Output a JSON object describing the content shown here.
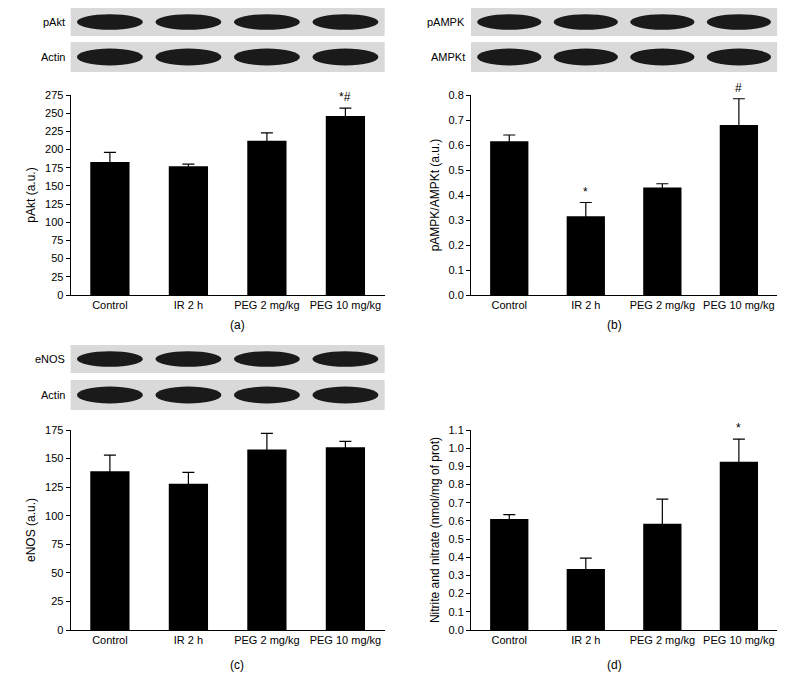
{
  "chart_data": [
    {
      "type": "bar",
      "panel_label": "(a)",
      "blots": [
        "pAkt",
        "Actin"
      ],
      "categories": [
        "Control",
        "IR 2 h",
        "PEG 2 mg/kg",
        "PEG 10 mg/kg"
      ],
      "values": [
        183,
        177,
        212,
        246
      ],
      "errors": [
        13,
        3,
        11,
        11
      ],
      "color": "#000000",
      "y_label": "pAkt (a.u.)",
      "ylim": [
        0,
        275
      ],
      "yticks": [
        0,
        25,
        50,
        75,
        100,
        125,
        150,
        175,
        200,
        225,
        250,
        275
      ],
      "grid": false,
      "annotations": [
        {
          "category": "PEG 10 mg/kg",
          "text": "*#"
        }
      ]
    },
    {
      "type": "bar",
      "panel_label": "(b)",
      "blots": [
        "pAMPK",
        "AMPKt"
      ],
      "categories": [
        "Control",
        "IR 2 h",
        "PEG 2 mg/kg",
        "PEG 10 mg/kg"
      ],
      "values": [
        0.615,
        0.315,
        0.43,
        0.68
      ],
      "errors": [
        0.025,
        0.055,
        0.015,
        0.105
      ],
      "color": "#000000",
      "y_label": "pAMPK/AMPKt (a.u.)",
      "ylim": [
        0,
        0.8
      ],
      "yticks": [
        {
          "value": 0,
          "label": "0.0"
        },
        0.1,
        0.2,
        0.3,
        0.4,
        0.5,
        0.6,
        0.7,
        0.8
      ],
      "grid": false,
      "annotations": [
        {
          "category": "IR 2 h",
          "text": "*"
        },
        {
          "category": "PEG 10 mg/kg",
          "text": "#"
        }
      ]
    },
    {
      "type": "bar",
      "panel_label": "(c)",
      "blots": [
        "eNOS",
        "Actin"
      ],
      "categories": [
        "Control",
        "IR 2 h",
        "PEG 2 mg/kg",
        "PEG 10 mg/kg"
      ],
      "values": [
        139,
        128,
        158,
        160
      ],
      "errors": [
        14,
        10,
        14,
        5
      ],
      "color": "#000000",
      "y_label": "eNOS (a.u.)",
      "ylim": [
        0,
        175
      ],
      "yticks": [
        0,
        25,
        50,
        75,
        100,
        125,
        150,
        175
      ],
      "grid": false,
      "annotations": []
    },
    {
      "type": "bar",
      "panel_label": "(d)",
      "categories": [
        "Control",
        "IR 2 h",
        "PEG 2 mg/kg",
        "PEG 10 mg/kg"
      ],
      "values": [
        0.61,
        0.335,
        0.585,
        0.925
      ],
      "errors": [
        0.025,
        0.06,
        0.135,
        0.125
      ],
      "color": "#000000",
      "y_label": "Nitrite and nitrate (nmol/mg of prot)",
      "ylim": [
        0,
        1.1
      ],
      "yticks": [
        {
          "value": 0,
          "label": "0.0"
        },
        0.1,
        0.2,
        0.3,
        0.4,
        0.5,
        0.6,
        0.7,
        0.8,
        0.9,
        {
          "value": 1,
          "label": "1.0"
        },
        1.1
      ],
      "grid": false,
      "annotations": [
        {
          "category": "PEG 10 mg/kg",
          "text": "*"
        }
      ]
    }
  ]
}
